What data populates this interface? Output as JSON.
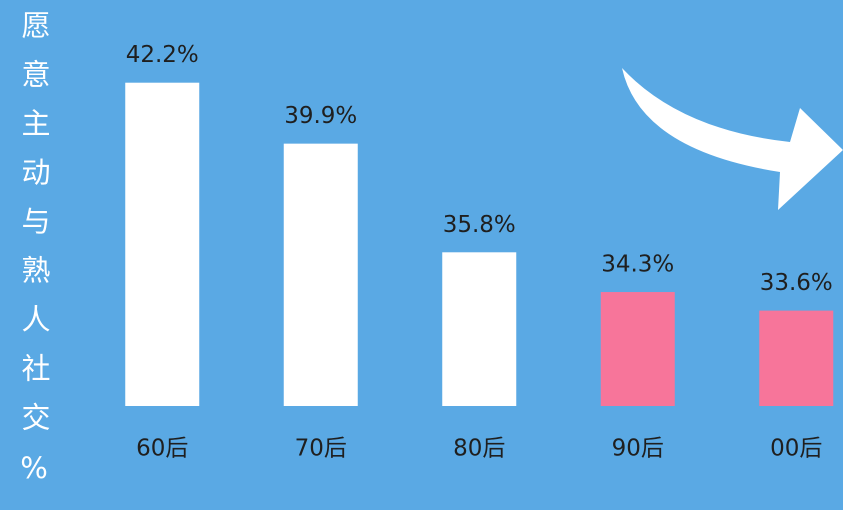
{
  "chart_data": {
    "type": "bar",
    "title": "愿意主动与熟人社交%",
    "categories": [
      "60后",
      "70后",
      "80后",
      "90后",
      "00后"
    ],
    "values": [
      42.2,
      39.9,
      35.8,
      34.3,
      33.6
    ],
    "value_labels": [
      "42.2%",
      "39.9%",
      "35.8%",
      "34.3%",
      "33.6%"
    ],
    "colors": [
      "#ffffff",
      "#ffffff",
      "#ffffff",
      "#f7759a",
      "#f7759a"
    ],
    "ylim": [
      30,
      45
    ]
  }
}
